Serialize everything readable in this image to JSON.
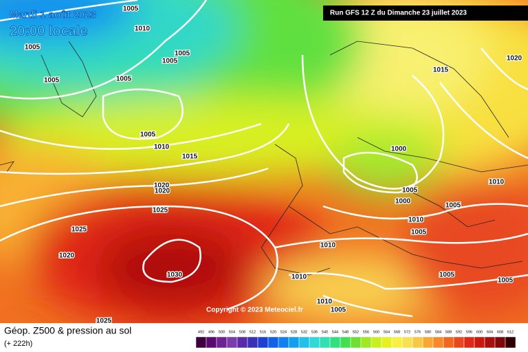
{
  "header": {
    "date": "Mardi 1 août 2023",
    "time": "20:00 locale",
    "run": "Run GFS 12 Z du Dimanche 23 juillet 2023"
  },
  "copyright": "Copyright © 2023 Meteociel.fr",
  "footer": {
    "title": "Géop. Z500 & pression au sol",
    "lead": "(+ 222h)"
  },
  "scale": {
    "labels": [
      492,
      496,
      500,
      504,
      508,
      512,
      516,
      520,
      524,
      528,
      532,
      536,
      540,
      544,
      548,
      552,
      556,
      560,
      564,
      568,
      572,
      576,
      580,
      584,
      588,
      592,
      596,
      600,
      604,
      608,
      612
    ],
    "colors": [
      "#3d003d",
      "#5a0a6e",
      "#6d2390",
      "#7d3cad",
      "#5b2aa8",
      "#3a30b8",
      "#1e40d0",
      "#1060e8",
      "#1080f0",
      "#10a0f0",
      "#20c0e8",
      "#30d8d8",
      "#30e0b0",
      "#30e080",
      "#40e050",
      "#70e030",
      "#a0e820",
      "#c8f020",
      "#e8f020",
      "#f8f040",
      "#f8e050",
      "#f8c840",
      "#f8a830",
      "#f88828",
      "#f06820",
      "#e84820",
      "#e02818",
      "#c81810",
      "#a81010",
      "#800808",
      "#300000"
    ]
  },
  "isobar_labels": [
    1005,
    1010,
    1005,
    1005,
    1005,
    1005,
    1005,
    1005,
    1010,
    1015,
    1020,
    1020,
    1025,
    1025,
    1020,
    1030,
    1025,
    1015,
    1020,
    1000,
    1005,
    1000,
    1005,
    1010,
    1010,
    1005,
    1010,
    1010,
    1005,
    1005,
    1010,
    1005
  ]
}
